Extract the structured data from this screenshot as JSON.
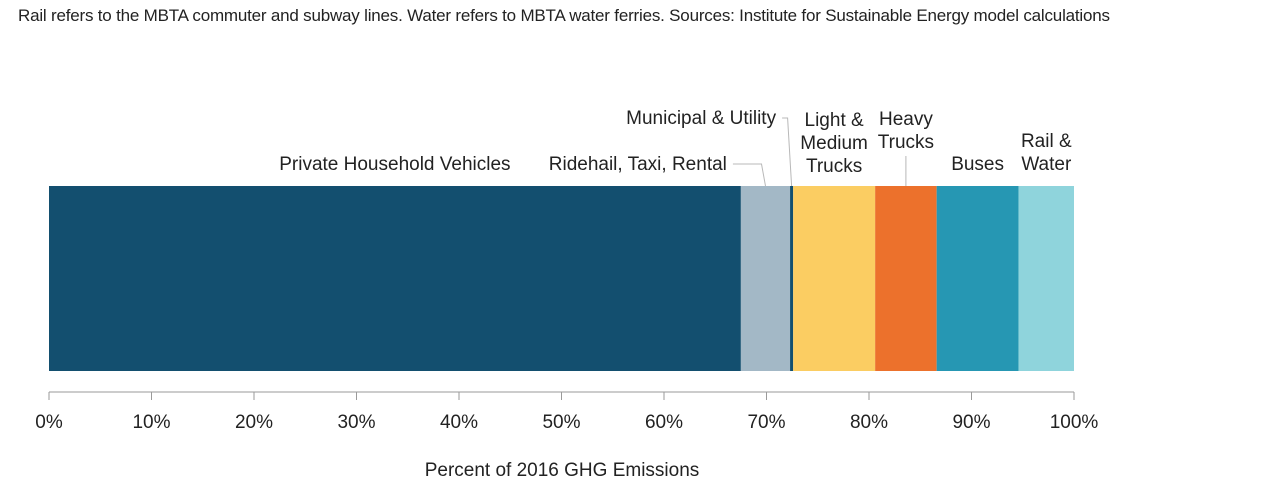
{
  "note": "Rail refers to the MBTA commuter and subway lines. Water refers to MBTA water ferries. Sources: Institute for Sustainable Energy model calculations",
  "chart_data": {
    "type": "bar",
    "orientation": "horizontal-stacked",
    "xlabel": "Percent of 2016 GHG Emissions",
    "xlim": [
      0,
      100
    ],
    "ticks": [
      "0%",
      "10%",
      "20%",
      "30%",
      "40%",
      "50%",
      "60%",
      "70%",
      "80%",
      "90%",
      "100%"
    ],
    "grid": false,
    "series": [
      {
        "name": "Private Household Vehicles",
        "lines": [
          "Private Household Vehicles"
        ],
        "value": 67.5,
        "color": "#134f6f"
      },
      {
        "name": "Ridehail, Taxi, Rental",
        "lines": [
          "Ridehail, Taxi, Rental"
        ],
        "value": 4.8,
        "color": "#a3b8c6"
      },
      {
        "name": "Municipal & Utility",
        "lines": [
          "Municipal & Utility"
        ],
        "value": 0.3,
        "color": "#134f6f"
      },
      {
        "name": "Light & Medium Trucks",
        "lines": [
          "Light &",
          "Medium",
          "Trucks"
        ],
        "value": 8.0,
        "color": "#fbcd62"
      },
      {
        "name": "Heavy Trucks",
        "lines": [
          "Heavy",
          "Trucks"
        ],
        "value": 6.0,
        "color": "#ec712c"
      },
      {
        "name": "Buses",
        "lines": [
          "Buses"
        ],
        "value": 8.0,
        "color": "#2697b3"
      },
      {
        "name": "Rail & Water",
        "lines": [
          "Rail &",
          "Water"
        ],
        "value": 5.4,
        "color": "#8fd4dc"
      }
    ]
  }
}
